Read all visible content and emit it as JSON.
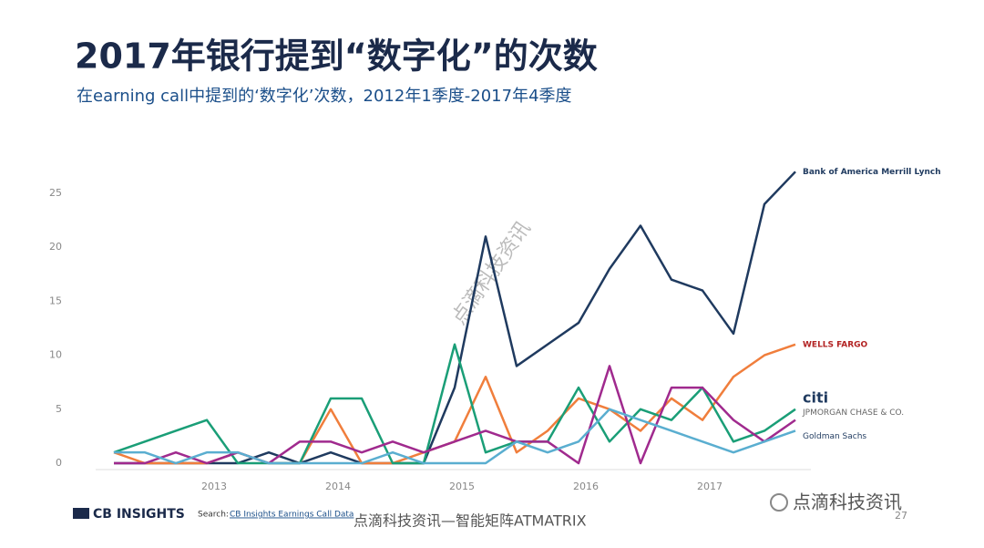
{
  "chart_data": {
    "type": "line",
    "title": "2017年银行提到“数字化”的次数",
    "subtitle": "在earning call中提到的‘数字化’次数，2012年1季度-2017年4季度",
    "categories": [
      null,
      null,
      null,
      "2013",
      null,
      null,
      null,
      "2014",
      null,
      null,
      null,
      "2015",
      null,
      null,
      null,
      "2016",
      null,
      null,
      null,
      "2017",
      null,
      null,
      null
    ],
    "series": [
      {
        "name": "Bank of America Merrill Lynch",
        "color": "#1f3a5f",
        "values": [
          0,
          0,
          0,
          0,
          0,
          1,
          0,
          1,
          0,
          0,
          0,
          7,
          21,
          9,
          11,
          13,
          18,
          22,
          17,
          16,
          12,
          24,
          27
        ]
      },
      {
        "name": "WELLS FARGO",
        "color": "#f07e3c",
        "values": [
          1,
          0,
          0,
          0,
          1,
          0,
          0,
          5,
          0,
          0,
          1,
          2,
          8,
          1,
          3,
          6,
          5,
          3,
          6,
          4,
          8,
          10,
          11
        ]
      },
      {
        "name": "citi",
        "color": "#1a9e77",
        "values": [
          1,
          2,
          3,
          4,
          0,
          0,
          0,
          6,
          6,
          0,
          0,
          11,
          1,
          2,
          2,
          7,
          2,
          5,
          4,
          7,
          2,
          3,
          5
        ]
      },
      {
        "name": "JPMORGAN CHASE & CO.",
        "color": "#a02a8e",
        "values": [
          0,
          0,
          1,
          0,
          1,
          0,
          2,
          2,
          1,
          2,
          1,
          2,
          3,
          2,
          2,
          0,
          9,
          0,
          7,
          7,
          4,
          2,
          4
        ]
      },
      {
        "name": "Goldman Sachs",
        "color": "#5aaed0",
        "values": [
          1,
          1,
          0,
          1,
          1,
          0,
          0,
          0,
          0,
          1,
          0,
          0,
          0,
          2,
          1,
          2,
          5,
          4,
          3,
          2,
          1,
          2,
          3
        ]
      }
    ],
    "ylim": [
      0,
      28
    ],
    "yticks": [
      0,
      5,
      10,
      15,
      20,
      25
    ],
    "grid": false
  },
  "footer": {
    "brand": "CB INSIGHTS",
    "source_prefix": "Search:",
    "source": "CB Insights Earnings Call Data",
    "watermark": "点滴科技资讯",
    "caption": "点滴科技资讯—智能矩阵ATMATRIX",
    "wechat": "点滴科技资讯",
    "page": "27"
  }
}
